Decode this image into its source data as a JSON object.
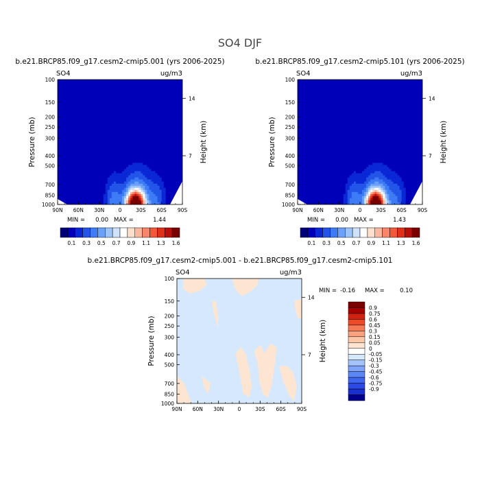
{
  "page": {
    "title": "SO4 DJF"
  },
  "palette": {
    "field": [
      "#00007a",
      "#0000b8",
      "#0a28d6",
      "#2255e8",
      "#3d7cf5",
      "#6aa0f8",
      "#9cc4fb",
      "#cfe2fc",
      "#ffffff",
      "#fde0cc",
      "#fbb8a0",
      "#f8866a",
      "#f25a3a",
      "#e03018",
      "#b81008",
      "#7a0000"
    ],
    "diff": [
      "#00008a",
      "#1b2fcf",
      "#2c4ae6",
      "#3f66f0",
      "#5b86f5",
      "#7fa3f8",
      "#a5c2fb",
      "#d6e8fd",
      "#ffffff",
      "#fde5d2",
      "#fcc7a8",
      "#faa27e",
      "#f67a55",
      "#ee4a2a",
      "#d42210",
      "#a60000",
      "#7a0000"
    ]
  },
  "chart_data": [
    {
      "type": "heatmap",
      "title": "b.e21.BRCP85.f09_g17.cesm2-cmip5.001 (yrs 2006-2025)",
      "variable_label": "SO4",
      "units_label": "ug/m3",
      "ylabel": "Pressure (mb)",
      "y2label": "Height (km)",
      "x_ticks": [
        "90N",
        "60N",
        "30N",
        "0",
        "30S",
        "60S",
        "90S"
      ],
      "y_ticks": [
        "100",
        "150",
        "200",
        "250",
        "300",
        "400",
        "500",
        "700",
        "850",
        "1000"
      ],
      "y2_ticks": [
        "14",
        "7"
      ],
      "min_label": "MIN =",
      "min_value": "0.00",
      "max_label": "MAX =",
      "max_value": "1.44",
      "colorbar_labels": [
        "0.1",
        "0.3",
        "0.5",
        "0.7",
        "0.9",
        "1.1",
        "1.3",
        "1.6"
      ]
    },
    {
      "type": "heatmap",
      "title": "b.e21.BRCP85.f09_g17.cesm2-cmip5.101 (yrs 2006-2025)",
      "variable_label": "SO4",
      "units_label": "ug/m3",
      "ylabel": "Pressure (mb)",
      "y2label": "Height (km)",
      "x_ticks": [
        "90N",
        "60N",
        "30N",
        "0",
        "30S",
        "60S",
        "90S"
      ],
      "y_ticks": [
        "100",
        "150",
        "200",
        "250",
        "300",
        "400",
        "500",
        "700",
        "850",
        "1000"
      ],
      "y2_ticks": [
        "14",
        "7"
      ],
      "min_label": "MIN =",
      "min_value": "0.00",
      "max_label": "MAX =",
      "max_value": "1.43",
      "colorbar_labels": [
        "0.1",
        "0.3",
        "0.5",
        "0.7",
        "0.9",
        "1.1",
        "1.3",
        "1.6"
      ]
    },
    {
      "type": "heatmap",
      "title": "b.e21.BRCP85.f09_g17.cesm2-cmip5.001 - b.e21.BRCP85.f09_g17.cesm2-cmip5.101",
      "variable_label": "SO4",
      "units_label": "ug/m3",
      "ylabel": "Pressure (mb)",
      "y2label": "Height (km)",
      "x_ticks": [
        "90N",
        "60N",
        "30N",
        "0",
        "30S",
        "60S",
        "90S"
      ],
      "y_ticks": [
        "100",
        "150",
        "200",
        "250",
        "300",
        "400",
        "500",
        "700",
        "850",
        "1000"
      ],
      "y2_ticks": [
        "14",
        "7"
      ],
      "min_label": "MIN =",
      "min_value": "-0.16",
      "max_label": "MAX =",
      "max_value": "0.10",
      "colorbar_labels": [
        "0.9",
        "0.75",
        "0.6",
        "0.45",
        "0.3",
        "0.15",
        "0.05",
        "0",
        "-0.05",
        "-0.15",
        "-0.3",
        "-0.45",
        "-0.6",
        "-0.75",
        "-0.9"
      ]
    }
  ]
}
